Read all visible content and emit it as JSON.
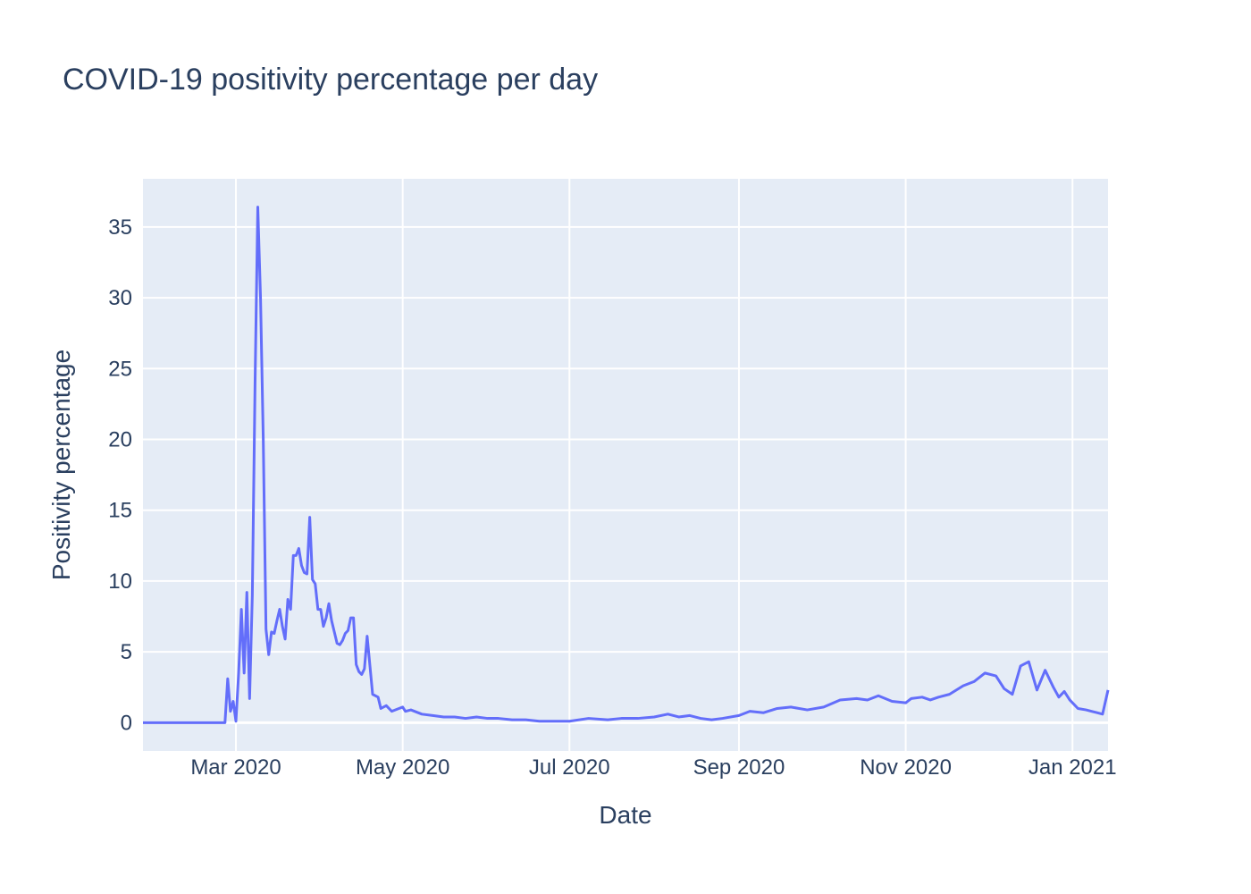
{
  "chart_data": {
    "type": "line",
    "title": "COVID-19 positivity percentage per day",
    "xlabel": "Date",
    "ylabel": "Positivity percentage",
    "xlim": [
      "2020-01-27",
      "2021-01-14"
    ],
    "ylim": [
      -2,
      38.4
    ],
    "grid": true,
    "line_color": "#636efa",
    "plot_bg": "#e5ecf6",
    "x_ticks": [
      {
        "date": "2020-03-01",
        "label": "Mar 2020"
      },
      {
        "date": "2020-05-01",
        "label": "May 2020"
      },
      {
        "date": "2020-07-01",
        "label": "Jul 2020"
      },
      {
        "date": "2020-09-01",
        "label": "Sep 2020"
      },
      {
        "date": "2020-11-01",
        "label": "Nov 2020"
      },
      {
        "date": "2021-01-01",
        "label": "Jan 2021"
      }
    ],
    "y_ticks": [
      {
        "value": 0,
        "label": "0"
      },
      {
        "value": 5,
        "label": "5"
      },
      {
        "value": 10,
        "label": "10"
      },
      {
        "value": 15,
        "label": "15"
      },
      {
        "value": 20,
        "label": "20"
      },
      {
        "value": 25,
        "label": "25"
      },
      {
        "value": 30,
        "label": "30"
      },
      {
        "value": 35,
        "label": "35"
      }
    ],
    "x": [
      "2020-01-27",
      "2020-02-25",
      "2020-02-26",
      "2020-02-27",
      "2020-02-28",
      "2020-02-29",
      "2020-03-01",
      "2020-03-02",
      "2020-03-03",
      "2020-03-04",
      "2020-03-05",
      "2020-03-06",
      "2020-03-07",
      "2020-03-08",
      "2020-03-09",
      "2020-03-10",
      "2020-03-11",
      "2020-03-12",
      "2020-03-13",
      "2020-03-14",
      "2020-03-15",
      "2020-03-16",
      "2020-03-17",
      "2020-03-18",
      "2020-03-19",
      "2020-03-20",
      "2020-03-21",
      "2020-03-22",
      "2020-03-23",
      "2020-03-24",
      "2020-03-25",
      "2020-03-26",
      "2020-03-27",
      "2020-03-28",
      "2020-03-29",
      "2020-03-30",
      "2020-03-31",
      "2020-04-01",
      "2020-04-02",
      "2020-04-03",
      "2020-04-04",
      "2020-04-05",
      "2020-04-06",
      "2020-04-07",
      "2020-04-08",
      "2020-04-09",
      "2020-04-10",
      "2020-04-11",
      "2020-04-12",
      "2020-04-13",
      "2020-04-14",
      "2020-04-15",
      "2020-04-16",
      "2020-04-17",
      "2020-04-18",
      "2020-04-20",
      "2020-04-22",
      "2020-04-23",
      "2020-04-25",
      "2020-04-27",
      "2020-05-01",
      "2020-05-02",
      "2020-05-04",
      "2020-05-08",
      "2020-05-12",
      "2020-05-16",
      "2020-05-20",
      "2020-05-24",
      "2020-05-28",
      "2020-06-01",
      "2020-06-05",
      "2020-06-10",
      "2020-06-15",
      "2020-06-20",
      "2020-06-25",
      "2020-07-01",
      "2020-07-08",
      "2020-07-15",
      "2020-07-20",
      "2020-07-26",
      "2020-08-01",
      "2020-08-06",
      "2020-08-10",
      "2020-08-14",
      "2020-08-18",
      "2020-08-22",
      "2020-08-26",
      "2020-09-01",
      "2020-09-05",
      "2020-09-10",
      "2020-09-15",
      "2020-09-20",
      "2020-09-26",
      "2020-10-02",
      "2020-10-08",
      "2020-10-14",
      "2020-10-18",
      "2020-10-22",
      "2020-10-27",
      "2020-11-01",
      "2020-11-03",
      "2020-11-07",
      "2020-11-10",
      "2020-11-13",
      "2020-11-17",
      "2020-11-22",
      "2020-11-26",
      "2020-11-30",
      "2020-12-04",
      "2020-12-07",
      "2020-12-10",
      "2020-12-13",
      "2020-12-16",
      "2020-12-19",
      "2020-12-22",
      "2020-12-25",
      "2020-12-27",
      "2020-12-29",
      "2020-12-31",
      "2021-01-03",
      "2021-01-06",
      "2021-01-08",
      "2021-01-10",
      "2021-01-12",
      "2021-01-14"
    ],
    "y": [
      0,
      0,
      0,
      3.1,
      0.8,
      1.5,
      0.1,
      3.5,
      8.0,
      3.5,
      9.2,
      1.7,
      9.0,
      24.0,
      36.4,
      30.0,
      20.0,
      6.6,
      4.8,
      6.4,
      6.3,
      7.2,
      8.0,
      6.8,
      5.9,
      8.7,
      8.0,
      11.8,
      11.8,
      12.3,
      11.1,
      10.6,
      10.5,
      14.5,
      10.1,
      9.8,
      8.0,
      8.0,
      6.8,
      7.4,
      8.4,
      7.2,
      6.4,
      5.6,
      5.5,
      5.8,
      6.3,
      6.5,
      7.4,
      7.4,
      4.1,
      3.6,
      3.4,
      3.8,
      6.1,
      2.0,
      1.8,
      1.0,
      1.2,
      0.8,
      1.1,
      0.8,
      0.9,
      0.6,
      0.5,
      0.4,
      0.4,
      0.3,
      0.4,
      0.3,
      0.3,
      0.2,
      0.2,
      0.1,
      0.1,
      0.1,
      0.3,
      0.2,
      0.3,
      0.3,
      0.4,
      0.6,
      0.4,
      0.5,
      0.3,
      0.2,
      0.3,
      0.5,
      0.8,
      0.7,
      1.0,
      1.1,
      0.9,
      1.1,
      1.6,
      1.7,
      1.6,
      1.9,
      1.5,
      1.4,
      1.7,
      1.8,
      1.6,
      1.8,
      2.0,
      2.6,
      2.9,
      3.5,
      3.3,
      2.4,
      2.0,
      4.0,
      4.3,
      2.3,
      3.7,
      2.5,
      1.8,
      2.2,
      1.6,
      1.0,
      0.9,
      0.8,
      0.7,
      0.6,
      2.3
    ]
  }
}
